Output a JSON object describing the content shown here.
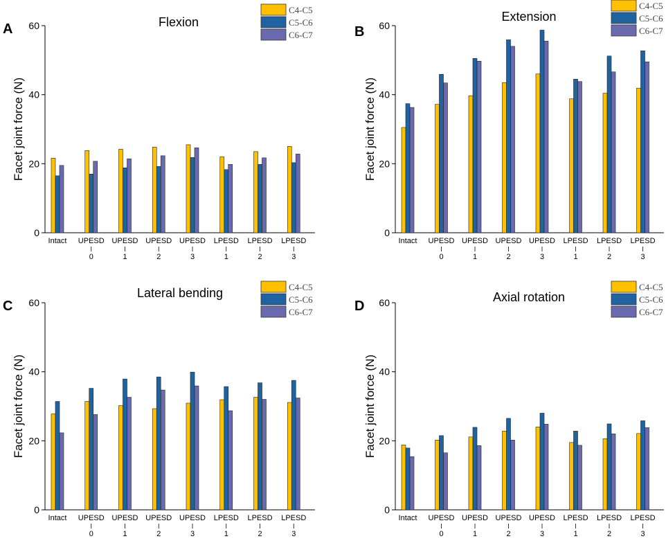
{
  "colors": {
    "C4-C5": "#FFC000",
    "C5-C6": "#1F64A0",
    "C6-C7": "#6A6AAE"
  },
  "chart_data": [
    {
      "type": "bar",
      "panel": "A",
      "title": "Flexion",
      "ylabel": "Facet joint force (N)",
      "xlabel": "",
      "ylim": [
        0,
        60
      ],
      "yticks": [
        0,
        20,
        40,
        60
      ],
      "legend": [
        "C4-C5",
        "C5-C6",
        "C6-C7"
      ],
      "categories": [
        {
          "name": "Intact",
          "sub": ""
        },
        {
          "name": "UPESD",
          "sub": "0"
        },
        {
          "name": "UPESD",
          "sub": "1"
        },
        {
          "name": "UPESD",
          "sub": "2"
        },
        {
          "name": "UPESD",
          "sub": "3"
        },
        {
          "name": "LPESD",
          "sub": "1"
        },
        {
          "name": "LPESD",
          "sub": "2"
        },
        {
          "name": "LPESD",
          "sub": "3"
        }
      ],
      "series": [
        {
          "name": "C4-C5",
          "values": [
            21.6,
            23.8,
            24.2,
            24.8,
            25.5,
            22.0,
            23.5,
            25.0
          ]
        },
        {
          "name": "C5-C6",
          "values": [
            16.5,
            17.0,
            18.8,
            19.2,
            21.8,
            18.3,
            19.8,
            20.3
          ]
        },
        {
          "name": "C6-C7",
          "values": [
            19.5,
            20.7,
            21.4,
            22.3,
            24.6,
            19.8,
            21.7,
            22.8
          ]
        }
      ]
    },
    {
      "type": "bar",
      "panel": "B",
      "title": "Extension",
      "ylabel": "Facet joint force (N)",
      "xlabel": "",
      "ylim": [
        0,
        60
      ],
      "yticks": [
        0,
        20,
        40,
        60
      ],
      "legend": [
        "C4-C5",
        "C5-C6",
        "C6-C7"
      ],
      "categories": [
        {
          "name": "Intact",
          "sub": ""
        },
        {
          "name": "UPESD",
          "sub": "0"
        },
        {
          "name": "UPESD",
          "sub": "1"
        },
        {
          "name": "UPESD",
          "sub": "2"
        },
        {
          "name": "UPESD",
          "sub": "3"
        },
        {
          "name": "LPESD",
          "sub": "1"
        },
        {
          "name": "LPESD",
          "sub": "2"
        },
        {
          "name": "LPESD",
          "sub": "3"
        }
      ],
      "series": [
        {
          "name": "C4-C5",
          "values": [
            30.5,
            37.2,
            39.7,
            43.5,
            46.0,
            38.8,
            40.4,
            41.9
          ]
        },
        {
          "name": "C5-C6",
          "values": [
            37.4,
            45.9,
            50.5,
            55.9,
            58.7,
            44.5,
            51.2,
            52.7
          ]
        },
        {
          "name": "C6-C7",
          "values": [
            36.3,
            43.4,
            49.7,
            54.0,
            55.5,
            43.8,
            46.6,
            49.5
          ]
        }
      ]
    },
    {
      "type": "bar",
      "panel": "C",
      "title": "Lateral bending",
      "ylabel": "Facet joint force (N)",
      "xlabel": "",
      "ylim": [
        0,
        60
      ],
      "yticks": [
        0,
        20,
        40,
        60
      ],
      "legend": [
        "C4-C5",
        "C5-C6",
        "C6-C7"
      ],
      "categories": [
        {
          "name": "Intact",
          "sub": ""
        },
        {
          "name": "UPESD",
          "sub": "0"
        },
        {
          "name": "UPESD",
          "sub": "1"
        },
        {
          "name": "UPESD",
          "sub": "2"
        },
        {
          "name": "UPESD",
          "sub": "3"
        },
        {
          "name": "LPESD",
          "sub": "1"
        },
        {
          "name": "LPESD",
          "sub": "2"
        },
        {
          "name": "LPESD",
          "sub": "3"
        }
      ],
      "series": [
        {
          "name": "C4-C5",
          "values": [
            27.8,
            31.4,
            30.2,
            29.3,
            30.9,
            31.9,
            32.6,
            31.1
          ]
        },
        {
          "name": "C5-C6",
          "values": [
            31.4,
            35.2,
            37.9,
            38.5,
            39.9,
            35.7,
            36.8,
            37.5
          ]
        },
        {
          "name": "C6-C7",
          "values": [
            22.3,
            27.6,
            32.6,
            34.7,
            35.9,
            28.7,
            32.0,
            32.4
          ]
        }
      ]
    },
    {
      "type": "bar",
      "panel": "D",
      "title": "Axial rotation",
      "ylabel": "Facet joint force (N)",
      "xlabel": "",
      "ylim": [
        0,
        60
      ],
      "yticks": [
        0,
        20,
        40,
        60
      ],
      "legend": [
        "C4-C5",
        "C5-C6",
        "C6-C7"
      ],
      "categories": [
        {
          "name": "Intact",
          "sub": ""
        },
        {
          "name": "UPESD",
          "sub": "0"
        },
        {
          "name": "UPESD",
          "sub": "1"
        },
        {
          "name": "UPESD",
          "sub": "2"
        },
        {
          "name": "UPESD",
          "sub": "3"
        },
        {
          "name": "LPESD",
          "sub": "1"
        },
        {
          "name": "LPESD",
          "sub": "2"
        },
        {
          "name": "LPESD",
          "sub": "3"
        }
      ],
      "series": [
        {
          "name": "C4-C5",
          "values": [
            18.8,
            20.2,
            21.1,
            22.8,
            24.0,
            19.5,
            20.6,
            22.1
          ]
        },
        {
          "name": "C5-C6",
          "values": [
            17.9,
            21.5,
            23.9,
            26.5,
            28.0,
            22.8,
            24.9,
            25.8
          ]
        },
        {
          "name": "C6-C7",
          "values": [
            15.4,
            16.5,
            18.6,
            20.2,
            24.8,
            18.7,
            22.0,
            23.8
          ]
        }
      ]
    }
  ]
}
